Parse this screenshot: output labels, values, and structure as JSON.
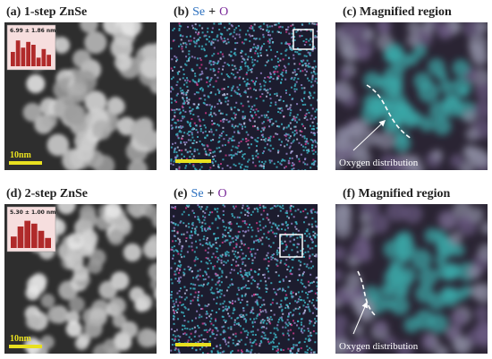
{
  "panels": [
    {
      "label": "(a) 1-step ZnSe",
      "inset_stat": "6.99 ± 1.86 nm",
      "scale_bar": "10nm"
    },
    {
      "label": "(b)",
      "elements": [
        "Se",
        "+",
        "O"
      ]
    },
    {
      "label": "(c) Magnified region",
      "annotation": "Oxygen distribution"
    },
    {
      "label": "(d) 2-step ZnSe",
      "inset_stat": "5.30 ± 1.00 nm",
      "scale_bar": "10nm"
    },
    {
      "label": "(e)",
      "elements": [
        "Se",
        "+",
        "O"
      ]
    },
    {
      "label": "(f) Magnified region",
      "annotation": "Oxygen distribution"
    }
  ]
}
